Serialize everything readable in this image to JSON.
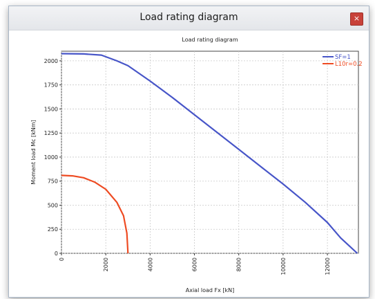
{
  "window": {
    "title": "Load rating diagram",
    "close_label": "×"
  },
  "chart_data": {
    "type": "line",
    "title": "Load rating diagram",
    "xlabel": "Axial load Fx [kN]",
    "ylabel": "Moment load Mc [kNm]",
    "xlim": [
      0,
      13400
    ],
    "ylim": [
      0,
      2100
    ],
    "xticks": [
      0,
      2000,
      4000,
      6000,
      8000,
      10000,
      12000
    ],
    "yticks": [
      0,
      250,
      500,
      750,
      1000,
      1250,
      1500,
      1750,
      2000
    ],
    "grid": true,
    "legend_position": "top-right",
    "series": [
      {
        "name": "SF=1",
        "color": "#4755c8",
        "points": [
          [
            0,
            2075
          ],
          [
            1000,
            2072
          ],
          [
            1800,
            2060
          ],
          [
            2500,
            2000
          ],
          [
            3000,
            1950
          ],
          [
            4000,
            1790
          ],
          [
            5000,
            1620
          ],
          [
            6000,
            1440
          ],
          [
            7000,
            1260
          ],
          [
            8000,
            1080
          ],
          [
            9000,
            900
          ],
          [
            10000,
            720
          ],
          [
            11000,
            530
          ],
          [
            12000,
            320
          ],
          [
            12600,
            160
          ],
          [
            13350,
            0
          ]
        ]
      },
      {
        "name": "L10r=0.2",
        "color": "#ee4b22",
        "points": [
          [
            0,
            810
          ],
          [
            500,
            805
          ],
          [
            1000,
            785
          ],
          [
            1500,
            740
          ],
          [
            2000,
            665
          ],
          [
            2500,
            530
          ],
          [
            2800,
            390
          ],
          [
            2950,
            210
          ],
          [
            3000,
            0
          ]
        ]
      }
    ]
  }
}
